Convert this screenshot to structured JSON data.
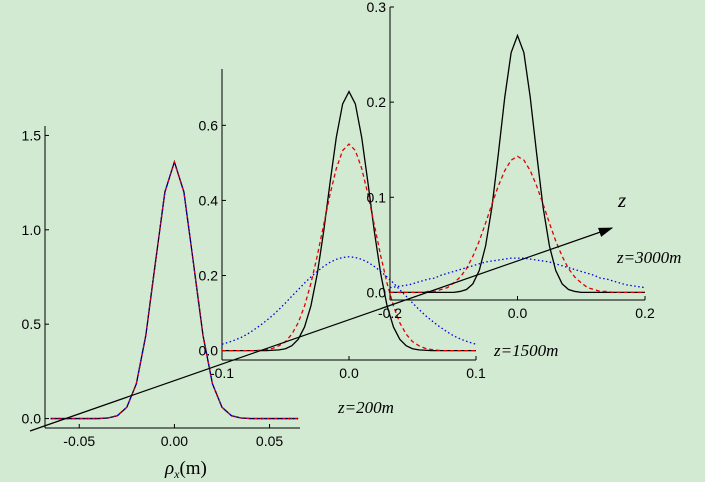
{
  "chart_data": [
    {
      "type": "line",
      "annotation": "z=200m",
      "arrow_label": "z",
      "xlabel_symbol": "ρ",
      "xlabel_subscript": "x",
      "xlabel_unit": "(m)",
      "xlim": [
        -0.068,
        0.066
      ],
      "ylim": [
        -0.05,
        1.55
      ],
      "xticks": [
        {
          "value": -0.05,
          "label": "-0.05"
        },
        {
          "value": 0,
          "label": "0.00"
        },
        {
          "value": 0.05,
          "label": "0.05"
        }
      ],
      "yticks": [
        {
          "value": 0,
          "label": "0.0"
        },
        {
          "value": 0.5,
          "label": "0.5"
        },
        {
          "value": 1,
          "label": "1.0"
        },
        {
          "value": 1.5,
          "label": "1.5"
        }
      ],
      "x": [
        -0.065,
        -0.06,
        -0.055,
        -0.05,
        -0.045,
        -0.04,
        -0.035,
        -0.03,
        -0.025,
        -0.02,
        -0.015,
        -0.01,
        -0.005,
        0,
        0.005,
        0.01,
        0.015,
        0.02,
        0.025,
        0.03,
        0.035,
        0.04,
        0.045,
        0.05,
        0.055,
        0.06,
        0.065
      ],
      "series": [
        {
          "color": "#000000",
          "style": "solid",
          "values": [
            0,
            0,
            0,
            0,
            0,
            0,
            0.003,
            0.015,
            0.06,
            0.184,
            0.442,
            0.825,
            1.2,
            1.36,
            1.2,
            0.825,
            0.442,
            0.184,
            0.06,
            0.015,
            0.003,
            0,
            0,
            0,
            0,
            0,
            0
          ]
        },
        {
          "color": "#e00000",
          "style": "dashed",
          "values": [
            0,
            0,
            0,
            0,
            0,
            0,
            0.003,
            0.015,
            0.06,
            0.184,
            0.442,
            0.825,
            1.2,
            1.36,
            1.2,
            0.825,
            0.442,
            0.184,
            0.06,
            0.015,
            0.003,
            0,
            0,
            0,
            0,
            0,
            0
          ]
        },
        {
          "color": "#0000e0",
          "style": "dotted",
          "values": [
            0,
            0,
            0,
            0,
            0,
            0,
            0.003,
            0.015,
            0.06,
            0.184,
            0.442,
            0.825,
            1.2,
            1.36,
            1.2,
            0.825,
            0.442,
            0.184,
            0.06,
            0.015,
            0.003,
            0,
            0,
            0,
            0,
            0,
            0
          ]
        }
      ]
    },
    {
      "type": "line",
      "annotation": "z=1500m",
      "xlim": [
        -0.1,
        0.1
      ],
      "ylim": [
        -0.025,
        0.75
      ],
      "xticks": [
        -0.1,
        {
          "value": 0,
          "label": "0.0"
        },
        0.1
      ],
      "yticks": [
        {
          "value": 0,
          "label": "0.0"
        },
        0.2,
        0.4,
        0.6
      ],
      "x": [
        -0.1,
        -0.095,
        -0.09,
        -0.085,
        -0.08,
        -0.075,
        -0.07,
        -0.065,
        -0.06,
        -0.055,
        -0.05,
        -0.045,
        -0.04,
        -0.035,
        -0.03,
        -0.025,
        -0.02,
        -0.015,
        -0.01,
        -0.005,
        0,
        0.005,
        0.01,
        0.015,
        0.02,
        0.025,
        0.03,
        0.035,
        0.04,
        0.045,
        0.05,
        0.055,
        0.06,
        0.065,
        0.07,
        0.075,
        0.08,
        0.085,
        0.09,
        0.095,
        0.1
      ],
      "series": [
        {
          "color": "#000000",
          "style": "solid",
          "values": [
            0,
            0,
            0,
            0,
            0,
            0,
            0,
            0,
            0.001,
            0.002,
            0.005,
            0.013,
            0.03,
            0.063,
            0.119,
            0.204,
            0.316,
            0.445,
            0.568,
            0.657,
            0.69,
            0.657,
            0.568,
            0.445,
            0.316,
            0.204,
            0.119,
            0.063,
            0.03,
            0.013,
            0.005,
            0.002,
            0.001,
            0,
            0,
            0,
            0,
            0,
            0,
            0,
            0
          ]
        },
        {
          "color": "#e00000",
          "style": "dashed",
          "values": [
            0,
            0,
            0,
            0,
            0,
            0,
            0.001,
            0.003,
            0.006,
            0.013,
            0.024,
            0.044,
            0.074,
            0.119,
            0.179,
            0.252,
            0.334,
            0.415,
            0.485,
            0.533,
            0.55,
            0.533,
            0.485,
            0.415,
            0.334,
            0.252,
            0.179,
            0.119,
            0.074,
            0.044,
            0.024,
            0.013,
            0.006,
            0.003,
            0.001,
            0,
            0,
            0,
            0,
            0,
            0
          ]
        },
        {
          "color": "#0000e0",
          "style": "dotted",
          "values": [
            0.017,
            0.022,
            0.028,
            0.035,
            0.044,
            0.055,
            0.067,
            0.08,
            0.094,
            0.11,
            0.127,
            0.145,
            0.162,
            0.18,
            0.196,
            0.211,
            0.224,
            0.235,
            0.243,
            0.248,
            0.25,
            0.248,
            0.243,
            0.235,
            0.224,
            0.211,
            0.196,
            0.18,
            0.162,
            0.145,
            0.127,
            0.11,
            0.094,
            0.08,
            0.067,
            0.055,
            0.044,
            0.035,
            0.028,
            0.022,
            0.017
          ]
        }
      ]
    },
    {
      "type": "line",
      "annotation": "z=3000m",
      "xlim": [
        -0.2,
        0.2
      ],
      "ylim": [
        -0.008,
        0.3
      ],
      "xticks": [
        -0.2,
        {
          "value": 0,
          "label": "0.0"
        },
        0.2
      ],
      "yticks": [
        {
          "value": 0,
          "label": "0.0"
        },
        0.1,
        0.2,
        0.3
      ],
      "x": [
        -0.2,
        -0.19,
        -0.18,
        -0.17,
        -0.16,
        -0.15,
        -0.14,
        -0.13,
        -0.12,
        -0.11,
        -0.1,
        -0.09,
        -0.08,
        -0.07,
        -0.06,
        -0.05,
        -0.04,
        -0.03,
        -0.02,
        -0.01,
        0,
        0.01,
        0.02,
        0.03,
        0.04,
        0.05,
        0.06,
        0.07,
        0.08,
        0.09,
        0.1,
        0.11,
        0.12,
        0.13,
        0.14,
        0.15,
        0.16,
        0.17,
        0.18,
        0.19,
        0.2
      ],
      "series": [
        {
          "color": "#000000",
          "style": "solid",
          "values": [
            0,
            0,
            0,
            0,
            0,
            0,
            0,
            0,
            0,
            0,
            0,
            0.001,
            0.003,
            0.009,
            0.023,
            0.049,
            0.09,
            0.146,
            0.205,
            0.252,
            0.27,
            0.252,
            0.205,
            0.146,
            0.09,
            0.049,
            0.023,
            0.009,
            0.003,
            0.001,
            0,
            0,
            0,
            0,
            0,
            0,
            0,
            0,
            0,
            0,
            0
          ]
        },
        {
          "color": "#e00000",
          "style": "dashed",
          "values": [
            0,
            0,
            0,
            0,
            0,
            0,
            0.001,
            0.001,
            0.003,
            0.005,
            0.01,
            0.016,
            0.025,
            0.038,
            0.054,
            0.073,
            0.093,
            0.112,
            0.128,
            0.139,
            0.143,
            0.139,
            0.128,
            0.112,
            0.093,
            0.073,
            0.054,
            0.038,
            0.025,
            0.016,
            0.01,
            0.005,
            0.003,
            0.001,
            0.001,
            0,
            0,
            0,
            0,
            0,
            0
          ]
        },
        {
          "color": "#0000e0",
          "style": "dotted",
          "values": [
            0.005,
            0.006,
            0.007,
            0.008,
            0.01,
            0.012,
            0.014,
            0.015,
            0.018,
            0.02,
            0.022,
            0.024,
            0.026,
            0.028,
            0.03,
            0.032,
            0.033,
            0.034,
            0.035,
            0.036,
            0.036,
            0.036,
            0.035,
            0.034,
            0.033,
            0.032,
            0.03,
            0.028,
            0.026,
            0.024,
            0.022,
            0.02,
            0.018,
            0.015,
            0.014,
            0.012,
            0.01,
            0.008,
            0.007,
            0.006,
            0.005
          ]
        }
      ]
    }
  ]
}
